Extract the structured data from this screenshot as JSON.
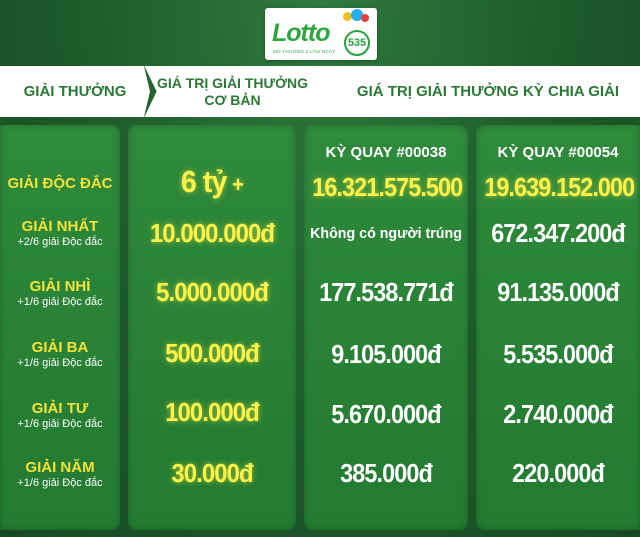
{
  "logo": {
    "word": "Lotto",
    "number": "535",
    "tagline": "MỞ THƯỞNG 2 LẦN/ NGÀY",
    "ball_colors": [
      "#f0c020",
      "#22aee8",
      "#e84040"
    ]
  },
  "header": {
    "col1": "GIẢI THƯỞNG",
    "col2_line1": "GIÁ TRỊ GIẢI THƯỞNG",
    "col2_line2": "CƠ BẢN",
    "col3": "GIÁ TRỊ GIẢI THƯỞNG KỲ CHIA GIẢI"
  },
  "draws": [
    "KỲ QUAY #00038",
    "KỲ QUAY #00054"
  ],
  "prizes": [
    {
      "name": "GIẢI ĐỘC ĐẮC",
      "note": "",
      "base": "6 tỷ",
      "base_suffix": "+",
      "draw1": "16.321.575.500",
      "draw2": "19.639.152.000"
    },
    {
      "name": "GIẢI NHẤT",
      "note": "+2/6 giải Độc đắc",
      "base": "10.000.000đ",
      "draw1": "Không có người trúng",
      "draw2": "672.347.200đ"
    },
    {
      "name": "GIẢI NHÌ",
      "note": "+1/6 giải Độc đắc",
      "base": "5.000.000đ",
      "draw1": "177.538.771đ",
      "draw2": "91.135.000đ"
    },
    {
      "name": "GIẢI BA",
      "note": "+1/6 giải Độc đắc",
      "base": "500.000đ",
      "draw1": "9.105.000đ",
      "draw2": "5.535.000đ"
    },
    {
      "name": "GIẢI TƯ",
      "note": "+1/6 giải Độc đắc",
      "base": "100.000đ",
      "draw1": "5.670.000đ",
      "draw2": "2.740.000đ"
    },
    {
      "name": "GIẢI NĂM",
      "note": "+1/6 giải Độc đắc",
      "base": "30.000đ",
      "draw1": "385.000đ",
      "draw2": "220.000đ"
    }
  ],
  "colors": {
    "background": "#1d5a2a",
    "panel": "#2a8236",
    "label_yellow": "#f3e23a",
    "value_yellow": "#fff24a",
    "header_text": "#2a7a35"
  }
}
